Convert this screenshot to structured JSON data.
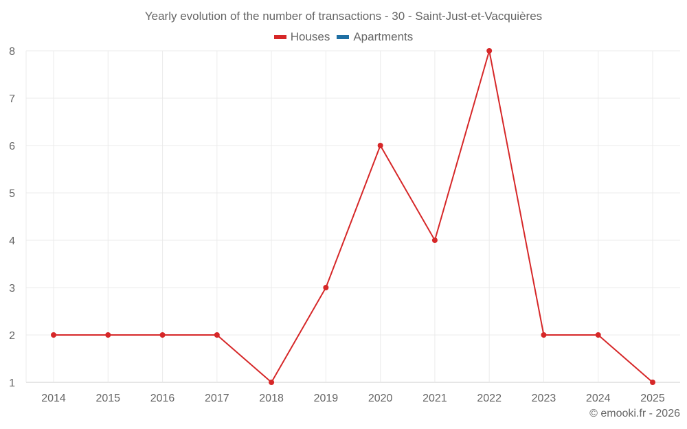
{
  "chart_data": {
    "type": "line",
    "title": "Yearly evolution of the number of transactions - 30 - Saint-Just-et-Vacquières",
    "xlabel": "",
    "ylabel": "",
    "categories": [
      "2014",
      "2015",
      "2016",
      "2017",
      "2018",
      "2019",
      "2020",
      "2021",
      "2022",
      "2023",
      "2024",
      "2025"
    ],
    "series": [
      {
        "name": "Houses",
        "color": "#d62728",
        "values": [
          2,
          2,
          2,
          2,
          1,
          3,
          6,
          4,
          8,
          2,
          2,
          1
        ]
      },
      {
        "name": "Apartments",
        "color": "#1f6fa3",
        "values": []
      }
    ],
    "ylim": [
      1,
      8
    ],
    "yticks": [
      1,
      2,
      3,
      4,
      5,
      6,
      7,
      8
    ],
    "grid": true,
    "legend_position": "top"
  },
  "legend": [
    {
      "label": "Houses",
      "color": "#d62728"
    },
    {
      "label": "Apartments",
      "color": "#1f6fa3"
    }
  ],
  "credit": "© emooki.fr - 2026"
}
